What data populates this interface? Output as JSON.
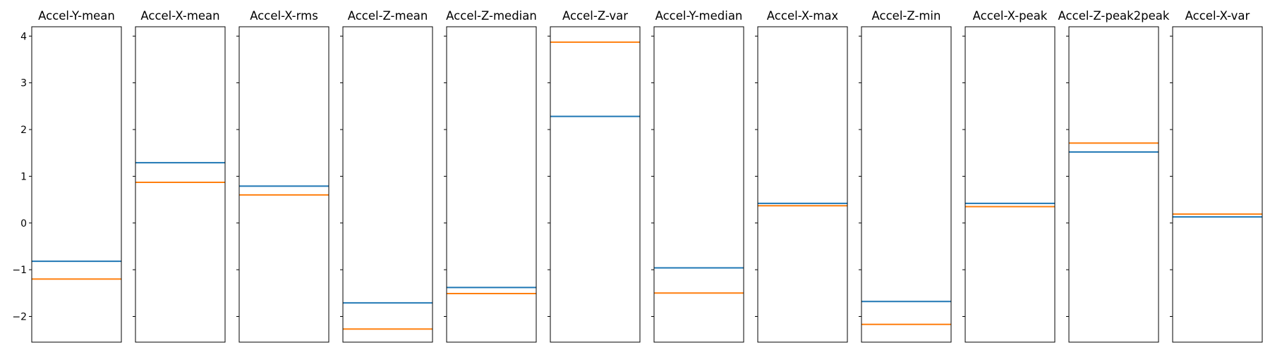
{
  "chart_data": {
    "type": "line",
    "layout": "small-multiples",
    "sharey": true,
    "ylim": [
      -2.55,
      4.2
    ],
    "yticks": [
      -2,
      -1,
      0,
      1,
      2,
      3,
      4
    ],
    "yticklabels": [
      "−2",
      "−1",
      "0",
      "1",
      "2",
      "3",
      "4"
    ],
    "grid": false,
    "legend": "none",
    "series_colors": [
      "#1f77b4",
      "#ff7f0e"
    ],
    "panels": [
      {
        "title": "Accel-Y-mean",
        "values": [
          -0.82,
          -1.2
        ]
      },
      {
        "title": "Accel-X-mean",
        "values": [
          1.29,
          0.87
        ]
      },
      {
        "title": "Accel-X-rms",
        "values": [
          0.79,
          0.6
        ]
      },
      {
        "title": "Accel-Z-mean",
        "values": [
          -1.71,
          -2.27
        ]
      },
      {
        "title": "Accel-Z-median",
        "values": [
          -1.38,
          -1.51
        ]
      },
      {
        "title": "Accel-Z-var",
        "values": [
          2.28,
          3.87
        ]
      },
      {
        "title": "Accel-Y-median",
        "values": [
          -0.96,
          -1.5
        ]
      },
      {
        "title": "Accel-X-max",
        "values": [
          0.42,
          0.37
        ]
      },
      {
        "title": "Accel-Z-min",
        "values": [
          -1.68,
          -2.17
        ]
      },
      {
        "title": "Accel-X-peak",
        "values": [
          0.42,
          0.35
        ]
      },
      {
        "title": "Accel-Z-peak2peak",
        "values": [
          1.52,
          1.71
        ]
      },
      {
        "title": "Accel-X-var",
        "values": [
          0.13,
          0.19
        ]
      }
    ]
  }
}
